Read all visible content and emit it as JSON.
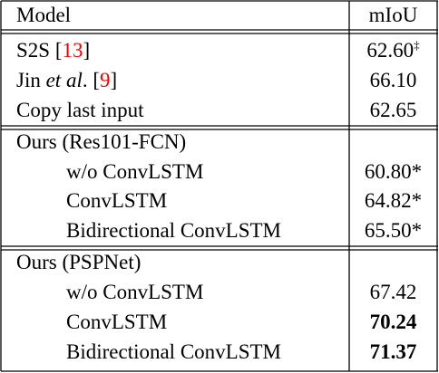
{
  "header": {
    "model": "Model",
    "miou": "mIoU"
  },
  "groups": [
    {
      "rows": [
        {
          "model": [
            "S2S [",
            "13",
            "]"
          ],
          "miou": [
            "62.60",
            "‡"
          ]
        },
        {
          "model": [
            "Jin ",
            "et al",
            ". [",
            "9",
            "]"
          ],
          "miou": [
            "66.10"
          ]
        },
        {
          "model": [
            "Copy last input"
          ],
          "miou": [
            "62.65"
          ]
        }
      ]
    },
    {
      "title": "Ours (Res101-FCN)",
      "rows": [
        {
          "model": [
            "w/o ConvLSTM"
          ],
          "miou": [
            "60.80*"
          ]
        },
        {
          "model": [
            "ConvLSTM"
          ],
          "miou": [
            "64.82*"
          ]
        },
        {
          "model": [
            "Bidirectional ConvLSTM"
          ],
          "miou": [
            "65.50*"
          ]
        }
      ]
    },
    {
      "title": "Ours (PSPNet)",
      "rows": [
        {
          "model": [
            "w/o ConvLSTM"
          ],
          "miou": [
            "67.42"
          ]
        },
        {
          "model": [
            "ConvLSTM"
          ],
          "miou": [
            "70.24"
          ]
        },
        {
          "model": [
            "Bidirectional ConvLSTM"
          ],
          "miou": [
            "71.37"
          ]
        }
      ]
    }
  ]
}
